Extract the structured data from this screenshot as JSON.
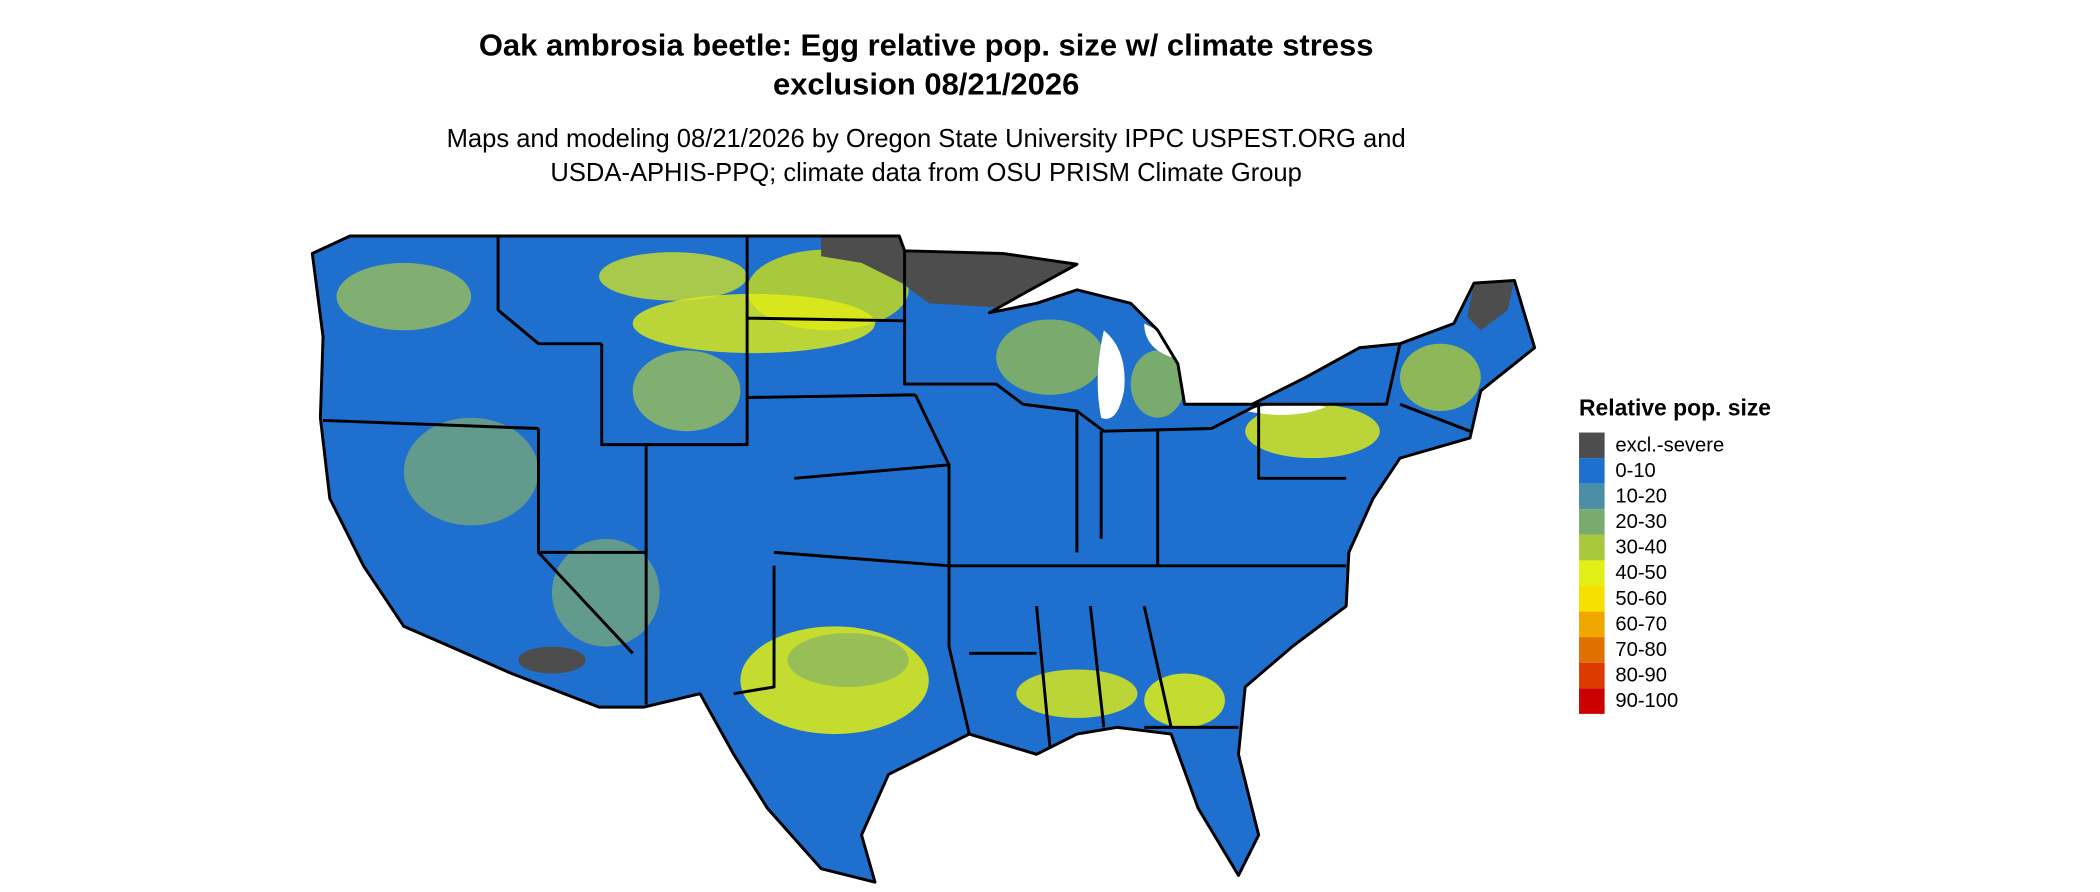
{
  "header": {
    "title": [
      "Oak ambrosia beetle: Egg relative pop. size w/ climate stress",
      "exclusion 08/21/2026"
    ],
    "subtitle": [
      "Maps and modeling 08/21/2026 by Oregon State University IPPC USPEST.ORG and",
      "USDA-APHIS-PPQ; climate data from OSU PRISM Climate Group"
    ]
  },
  "legend": {
    "title": "Relative pop. size",
    "items": [
      {
        "label": "excl.-severe",
        "color": "#4d4d4d"
      },
      {
        "label": "0-10",
        "color": "#1e6fce"
      },
      {
        "label": "10-20",
        "color": "#4a8fa6"
      },
      {
        "label": "20-30",
        "color": "#7aab6e"
      },
      {
        "label": "30-40",
        "color": "#a9c93c"
      },
      {
        "label": "40-50",
        "color": "#e2ef14"
      },
      {
        "label": "50-60",
        "color": "#f7e000"
      },
      {
        "label": "60-70",
        "color": "#f0a800"
      },
      {
        "label": "70-80",
        "color": "#e07000"
      },
      {
        "label": "80-90",
        "color": "#dd3a00"
      },
      {
        "label": "90-100",
        "color": "#cc0000"
      }
    ]
  }
}
